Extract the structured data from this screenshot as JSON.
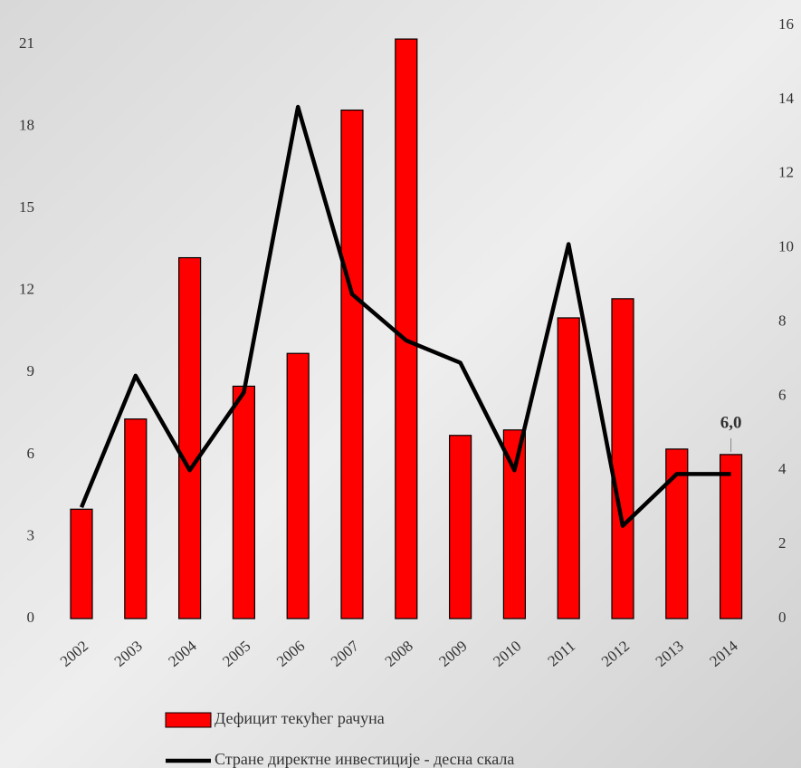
{
  "chart_data": {
    "type": "bar-line",
    "categories": [
      "2002",
      "2003",
      "2004",
      "2005",
      "2006",
      "2007",
      "2008",
      "2009",
      "2010",
      "2011",
      "2012",
      "2013",
      "2014"
    ],
    "series": [
      {
        "name": "Дефицит текућег рачуна",
        "type": "bar",
        "color": "#ff0000",
        "values": [
          4.0,
          7.3,
          13.2,
          8.5,
          9.7,
          18.6,
          21.2,
          6.7,
          6.9,
          11.0,
          11.7,
          6.2,
          6.0
        ],
        "value_labels": [
          null,
          null,
          null,
          null,
          null,
          null,
          null,
          null,
          null,
          null,
          null,
          null,
          "6,0"
        ]
      },
      {
        "name": "Стране директне инвестиције - десна скала",
        "type": "line",
        "color": "#000000",
        "axis": "y2",
        "values": [
          3.0,
          6.55,
          4.0,
          6.1,
          13.8,
          8.75,
          7.5,
          6.9,
          4.0,
          10.1,
          2.5,
          3.9,
          3.9
        ]
      }
    ],
    "ylim": [
      0,
      21.7
    ],
    "yticks": [
      0,
      3,
      6,
      9,
      12,
      15,
      18,
      21
    ],
    "y2lim": [
      0,
      16
    ],
    "y2ticks": [
      0,
      2,
      4,
      6,
      8,
      10,
      12,
      14,
      16
    ]
  }
}
